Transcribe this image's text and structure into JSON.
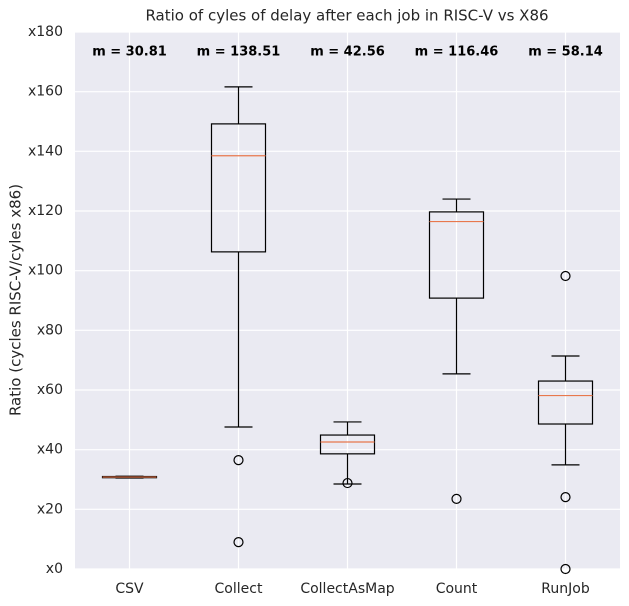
{
  "chart_data": {
    "type": "box",
    "title": "Ratio of cyles of delay after each job in RISC-V vs X86",
    "ylabel": "Ratio (cycles RISC-V/cyles x86)",
    "categories": [
      "CSV",
      "Collect",
      "CollectAsMap",
      "Count",
      "RunJob"
    ],
    "boxes": [
      {
        "whislo": 30.5,
        "q1": 30.6,
        "med": 30.81,
        "q3": 31.0,
        "whishi": 31.1,
        "fliers": []
      },
      {
        "whislo": 47.6,
        "q1": 106.3,
        "med": 138.51,
        "q3": 149.2,
        "whishi": 161.6,
        "fliers": [
          36.5,
          9
        ]
      },
      {
        "whislo": 28.5,
        "q1": 38.6,
        "med": 42.56,
        "q3": 44.9,
        "whishi": 49.3,
        "fliers": [
          28.8
        ]
      },
      {
        "whislo": 65.4,
        "q1": 90.8,
        "med": 116.46,
        "q3": 119.7,
        "whishi": 124,
        "fliers": [
          23.5
        ]
      },
      {
        "whislo": 34.9,
        "q1": 48.6,
        "med": 58.14,
        "q3": 63,
        "whishi": 71.4,
        "fliers": [
          98.2,
          24.1,
          0
        ]
      }
    ],
    "annotations": [
      "m = 30.81",
      "m = 138.51",
      "m = 42.56",
      "m = 116.46",
      "m = 58.14"
    ],
    "box_color": "#000000",
    "median_color": "#e8784d",
    "background": "#eaeaf2",
    "ylim": [
      0,
      180
    ],
    "yticks": [
      {
        "value": 0,
        "label": "x0"
      },
      {
        "value": 20,
        "label": "x20"
      },
      {
        "value": 40,
        "label": "x40"
      },
      {
        "value": 60,
        "label": "x60"
      },
      {
        "value": 80,
        "label": "x80"
      },
      {
        "value": 100,
        "label": "x100"
      },
      {
        "value": 120,
        "label": "x120"
      },
      {
        "value": 140,
        "label": "x140"
      },
      {
        "value": 160,
        "label": "x160"
      },
      {
        "value": 180,
        "label": "x180"
      }
    ],
    "grid": true
  }
}
